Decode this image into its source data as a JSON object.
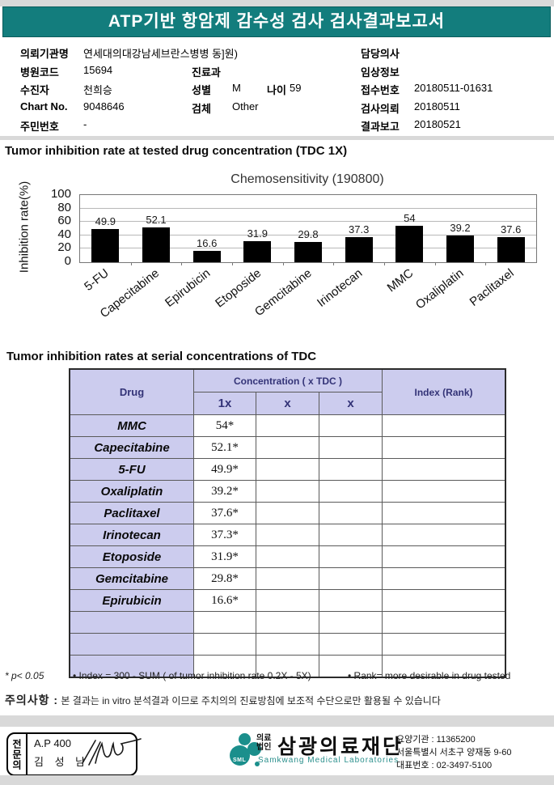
{
  "banner": {
    "title": "ATP기반 항암제 감수성 검사 검사결과보고서"
  },
  "patient_info": {
    "requesting_org_label": "의뢰기관명",
    "requesting_org": "연세대의대강남세브란스병병 동]원)",
    "hospital_code_label": "병원코드",
    "hospital_code": "15694",
    "patient_label": "수진자",
    "patient": "천희승",
    "chart_no_label": "Chart No.",
    "chart_no": "9048646",
    "resident_no_label": "주민번호",
    "resident_no": "-",
    "department_label": "진료과",
    "department": "",
    "sex_label": "성별",
    "sex": "M",
    "age_label": "나이",
    "age": "59",
    "specimen_label": "검체",
    "specimen": "Other",
    "doctor_label": "담당의사",
    "doctor": "",
    "clinical_info_label": "임상정보",
    "clinical_info": "",
    "receipt_no_label": "접수번호",
    "receipt_no": "20180511-01631",
    "request_date_label": "검사의뢰",
    "request_date": "20180511",
    "report_date_label": "결과보고",
    "report_date": "20180521"
  },
  "section1_title": "Tumor inhibition rate at tested drug concentration (TDC 1X)",
  "chart_data": {
    "type": "bar",
    "title": "Chemosensitivity (190800)",
    "ylabel": "Inhibition rate(%)",
    "xlabel": "",
    "categories": [
      "5-FU",
      "Capecitabine",
      "Epirubicin",
      "Etoposide",
      "Gemcitabine",
      "Irinotecan",
      "MMC",
      "Oxaliplatin",
      "Paclitaxel"
    ],
    "values": [
      49.9,
      52.1,
      16.6,
      31.9,
      29.8,
      37.3,
      54,
      39.2,
      37.6
    ],
    "yticks": [
      0,
      20,
      40,
      60,
      80,
      100
    ],
    "ylim": [
      0,
      100
    ],
    "grid": true,
    "bar_color": "#000000",
    "legend": "none"
  },
  "section2_title": "Tumor inhibition rates at serial concentrations of TDC",
  "table": {
    "header": {
      "drug": "Drug",
      "concentration": "Concentration ( x TDC )",
      "sub": [
        "1x",
        "x",
        "x"
      ],
      "index": "Index (Rank)"
    },
    "rows": [
      {
        "drug": "MMC",
        "c1": "54*",
        "c2": "",
        "c3": "",
        "index": ""
      },
      {
        "drug": "Capecitabine",
        "c1": "52.1*",
        "c2": "",
        "c3": "",
        "index": ""
      },
      {
        "drug": "5-FU",
        "c1": "49.9*",
        "c2": "",
        "c3": "",
        "index": ""
      },
      {
        "drug": "Oxaliplatin",
        "c1": "39.2*",
        "c2": "",
        "c3": "",
        "index": ""
      },
      {
        "drug": "Paclitaxel",
        "c1": "37.6*",
        "c2": "",
        "c3": "",
        "index": ""
      },
      {
        "drug": "Irinotecan",
        "c1": "37.3*",
        "c2": "",
        "c3": "",
        "index": ""
      },
      {
        "drug": "Etoposide",
        "c1": "31.9*",
        "c2": "",
        "c3": "",
        "index": ""
      },
      {
        "drug": "Gemcitabine",
        "c1": "29.8*",
        "c2": "",
        "c3": "",
        "index": ""
      },
      {
        "drug": "Epirubicin",
        "c1": "16.6*",
        "c2": "",
        "c3": "",
        "index": ""
      },
      {
        "drug": "",
        "c1": "",
        "c2": "",
        "c3": "",
        "index": ""
      },
      {
        "drug": "",
        "c1": "",
        "c2": "",
        "c3": "",
        "index": ""
      },
      {
        "drug": "",
        "c1": "",
        "c2": "",
        "c3": "",
        "index": ""
      }
    ]
  },
  "footnotes": {
    "f1": "* p< 0.05",
    "f2": "• Index = 300 - SUM ( of tumor inhibition rate 0.2X  -  5X)",
    "f3": "• Rank= more desirable in drug tested"
  },
  "caution": {
    "label": "주의사항 :",
    "text": "본 결과는 in vitro 분석결과 이므로 주치의의 진료방침에 보조적 수단으로만 활용될 수 있습니다"
  },
  "stamp": {
    "side_label": "전문의",
    "line1": "A.P 400",
    "line2": "김 성 남"
  },
  "logo": {
    "mark": "SML",
    "small1": "의료",
    "small2": "법인",
    "name": "삼광의료재단",
    "eng": "Samkwang Medical Laboratories",
    "info1": "요양기관 : 11365200",
    "info2": "서울특별시 서초구 양재동 9-60",
    "info3": "대표번호 : 02-3497-5100"
  },
  "colors": {
    "banner_teal": "#137d7d",
    "table_header_bg": "#ccccee",
    "table_header_text": "#333377",
    "bar_black": "#050505",
    "logo_teal": "#1b8f8c"
  }
}
